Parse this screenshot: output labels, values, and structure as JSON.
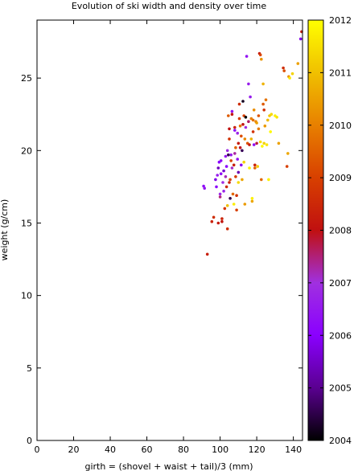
{
  "chart_data": {
    "type": "scatter",
    "title": "Evolution of ski width and density over time",
    "xlabel": "girth = (shovel + waist + tail)/3 (mm)",
    "ylabel": "weight (g/cm)",
    "xlim": [
      0,
      145
    ],
    "ylim": [
      0,
      29
    ],
    "x_ticks": [
      0,
      20,
      40,
      60,
      80,
      100,
      120,
      140
    ],
    "y_ticks": [
      0,
      5,
      10,
      15,
      20,
      25
    ],
    "grid": false,
    "colorbar": {
      "label_ticks": [
        2004,
        2005,
        2006,
        2007,
        2008,
        2009,
        2010,
        2011,
        2012
      ],
      "range": [
        2004,
        2012
      ],
      "stops": [
        "#000000",
        "#5a0090",
        "#8a00ff",
        "#a030e0",
        "#c01010",
        "#d84000",
        "#e88000",
        "#f0c000",
        "#ffff00"
      ]
    },
    "points": [
      [
        93.0,
        12.85,
        2008.3
      ],
      [
        91.0,
        17.55,
        2006.2
      ],
      [
        91.5,
        17.4,
        2006.5
      ],
      [
        95.5,
        15.1,
        2008.4
      ],
      [
        96.5,
        15.4,
        2008.6
      ],
      [
        97.5,
        18.0,
        2005.8
      ],
      [
        98.0,
        17.5,
        2006.1
      ],
      [
        98.5,
        18.3,
        2006.6
      ],
      [
        99.0,
        18.8,
        2005.4
      ],
      [
        99.5,
        19.2,
        2006.0
      ],
      [
        99.0,
        15.0,
        2008.2
      ],
      [
        100.0,
        17.0,
        2006.8
      ],
      [
        100.0,
        16.8,
        2007.5
      ],
      [
        100.5,
        18.4,
        2006.3
      ],
      [
        100.5,
        19.3,
        2006.2
      ],
      [
        101.0,
        15.1,
        2008.1
      ],
      [
        101.0,
        15.3,
        2008.4
      ],
      [
        101.5,
        17.8,
        2006.9
      ],
      [
        102.0,
        18.6,
        2005.6
      ],
      [
        102.0,
        17.2,
        2006.7
      ],
      [
        102.5,
        16.0,
        2008.8
      ],
      [
        103.0,
        18.2,
        2007.2
      ],
      [
        103.0,
        19.6,
        2006.5
      ],
      [
        103.5,
        17.5,
        2008.5
      ],
      [
        103.5,
        18.9,
        2006.0
      ],
      [
        104.0,
        20.0,
        2006.9
      ],
      [
        104.0,
        16.2,
        2011.0
      ],
      [
        104.5,
        22.4,
        2009.4
      ],
      [
        104.5,
        19.7,
        2004.6
      ],
      [
        104.0,
        14.6,
        2008.6
      ],
      [
        105.0,
        21.5,
        2008.0
      ],
      [
        105.0,
        20.8,
        2008.7
      ],
      [
        105.0,
        17.8,
        2008.3
      ],
      [
        105.5,
        16.7,
        2004.5
      ],
      [
        105.5,
        18.0,
        2009.1
      ],
      [
        106.0,
        19.3,
        2009.0
      ],
      [
        106.0,
        19.7,
        2006.6
      ],
      [
        106.5,
        22.7,
        2006.4
      ],
      [
        106.5,
        22.5,
        2008.1
      ],
      [
        106.5,
        18.8,
        2007.1
      ],
      [
        107.0,
        17.0,
        2009.6
      ],
      [
        107.5,
        16.3,
        2011.7
      ],
      [
        107.5,
        19.0,
        2008.3
      ],
      [
        108.0,
        21.6,
        2008.4
      ],
      [
        108.0,
        21.4,
        2006.2
      ],
      [
        108.0,
        19.8,
        2007.3
      ],
      [
        108.5,
        20.2,
        2009.5
      ],
      [
        108.5,
        18.2,
        2008.9
      ],
      [
        109.0,
        15.9,
        2009.0
      ],
      [
        109.0,
        16.9,
        2008.7
      ],
      [
        109.5,
        21.2,
        2006.8
      ],
      [
        109.5,
        19.4,
        2006.4
      ],
      [
        110.0,
        20.5,
        2008.2
      ],
      [
        110.0,
        17.8,
        2011.4
      ],
      [
        110.0,
        18.5,
        2005.3
      ],
      [
        110.5,
        22.2,
        2008.9
      ],
      [
        110.5,
        23.2,
        2008.6
      ],
      [
        111.0,
        20.2,
        2007.9
      ],
      [
        111.0,
        21.7,
        2009.8
      ],
      [
        111.5,
        21.0,
        2009.2
      ],
      [
        111.5,
        19.0,
        2005.9
      ],
      [
        112.0,
        20.0,
        2004.6
      ],
      [
        112.0,
        18.0,
        2010.6
      ],
      [
        112.5,
        23.4,
        2004.2
      ],
      [
        112.5,
        21.8,
        2008.0
      ],
      [
        113.0,
        22.4,
        2009.0
      ],
      [
        113.0,
        19.2,
        2011.3
      ],
      [
        113.5,
        20.8,
        2010.1
      ],
      [
        113.5,
        16.3,
        2010.4
      ],
      [
        114.0,
        22.3,
        2004.0
      ],
      [
        114.0,
        21.6,
        2007.0
      ],
      [
        114.5,
        26.5,
        2006.4
      ],
      [
        115.0,
        20.5,
        2009.3
      ],
      [
        115.5,
        24.6,
        2006.6
      ],
      [
        115.5,
        22.0,
        2007.6
      ],
      [
        116.0,
        18.8,
        2011.8
      ],
      [
        116.0,
        20.4,
        2008.2
      ],
      [
        116.5,
        23.7,
        2006.6
      ],
      [
        117.0,
        22.2,
        2010.0
      ],
      [
        117.0,
        20.8,
        2010.8
      ],
      [
        117.5,
        16.7,
        2011.8
      ],
      [
        117.5,
        16.5,
        2010.6
      ],
      [
        118.0,
        22.1,
        2009.7
      ],
      [
        118.0,
        21.3,
        2008.7
      ],
      [
        118.5,
        20.4,
        2006.3
      ],
      [
        118.5,
        22.8,
        2010.2
      ],
      [
        119.0,
        19.0,
        2008.4
      ],
      [
        119.0,
        18.8,
        2009.5
      ],
      [
        119.5,
        22.0,
        2010.1
      ],
      [
        120.0,
        20.5,
        2007.8
      ],
      [
        120.0,
        21.9,
        2010.5
      ],
      [
        120.5,
        18.9,
        2011.2
      ],
      [
        121.0,
        21.5,
        2009.9
      ],
      [
        121.0,
        22.4,
        2009.3
      ],
      [
        121.5,
        26.7,
        2008.2
      ],
      [
        122.0,
        26.6,
        2009.1
      ],
      [
        122.0,
        20.6,
        2011.5
      ],
      [
        122.5,
        26.3,
        2010.3
      ],
      [
        122.5,
        18.0,
        2009.6
      ],
      [
        123.0,
        20.3,
        2011.9
      ],
      [
        123.5,
        24.6,
        2010.8
      ],
      [
        123.5,
        23.2,
        2009.4
      ],
      [
        124.0,
        22.8,
        2008.7
      ],
      [
        124.0,
        20.5,
        2011.3
      ],
      [
        124.5,
        21.7,
        2010.4
      ],
      [
        125.0,
        23.5,
        2009.8
      ],
      [
        125.5,
        20.4,
        2011.6
      ],
      [
        126.0,
        22.1,
        2010.9
      ],
      [
        126.5,
        18.0,
        2011.8
      ],
      [
        127.0,
        22.4,
        2011.1
      ],
      [
        127.5,
        21.3,
        2011.9
      ],
      [
        128.0,
        22.5,
        2011.4
      ],
      [
        130.0,
        22.4,
        2011.8
      ],
      [
        131.0,
        22.3,
        2011.6
      ],
      [
        132.0,
        20.5,
        2010.5
      ],
      [
        134.5,
        25.7,
        2008.6
      ],
      [
        135.0,
        25.5,
        2009.2
      ],
      [
        136.5,
        18.9,
        2009.0
      ],
      [
        137.0,
        19.8,
        2010.6
      ],
      [
        137.5,
        25.1,
        2010.2
      ],
      [
        138.0,
        25.0,
        2011.7
      ],
      [
        139.5,
        25.3,
        2011.3
      ],
      [
        142.5,
        26.0,
        2010.5
      ],
      [
        144.0,
        27.7,
        2005.8
      ],
      [
        144.5,
        28.2,
        2008.3
      ]
    ]
  }
}
